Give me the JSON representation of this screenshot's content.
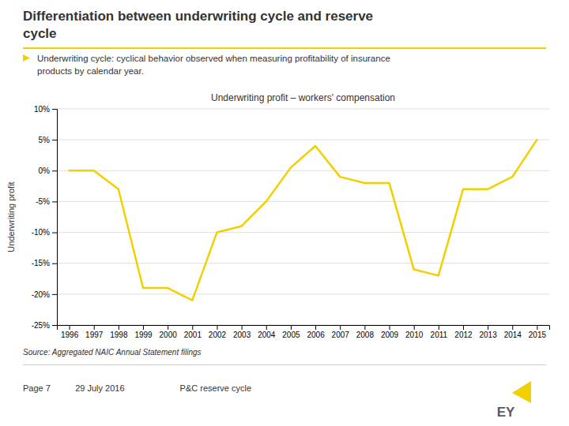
{
  "title": "Differentiation between underwriting cycle and reserve\ncycle",
  "subtitle": "Underwriting cycle: cyclical behavior observed when measuring profitability of insurance\nproducts by calendar year.",
  "annotations": [
    "Source: Aggregated NAIC Annual Statement filings",
    "Page 7",
    "29 July 2016",
    "P&C reserve cycle",
    "EY"
  ],
  "chart_data": {
    "type": "line",
    "title": "Underwriting profit – workers' compensation",
    "ylabel": "Underwriting profit",
    "x": [
      1996,
      1997,
      1998,
      1999,
      2000,
      2001,
      2002,
      2003,
      2004,
      2005,
      2006,
      2007,
      2008,
      2009,
      2010,
      2011,
      2012,
      2013,
      2014,
      2015
    ],
    "values": [
      0.0,
      0.0,
      -3.0,
      -19.0,
      -19.0,
      -21.0,
      -10.0,
      -9.0,
      -5.0,
      0.5,
      4.0,
      -1.0,
      -2.0,
      -2.0,
      -16.0,
      -17.0,
      -3.0,
      -3.0,
      -1.0,
      5.0
    ],
    "color": "#F2D000",
    "xlim": [
      1995.5,
      2015.5
    ],
    "xticks": [
      1996,
      1997,
      1998,
      1999,
      2000,
      2001,
      2002,
      2003,
      2004,
      2005,
      2006,
      2007,
      2008,
      2009,
      2010,
      2011,
      2012,
      2013,
      2014,
      2015
    ],
    "ylim": [
      -25,
      10
    ],
    "yticks": [
      {
        "value": -25,
        "label": "-25%"
      },
      {
        "value": -20,
        "label": "-20%"
      },
      {
        "value": -15,
        "label": "-15%"
      },
      {
        "value": -10,
        "label": "-10%"
      },
      {
        "value": -5,
        "label": "-5%"
      },
      {
        "value": 0,
        "label": "0%"
      },
      {
        "value": 5,
        "label": "5%"
      },
      {
        "value": 10,
        "label": "10%"
      }
    ],
    "grid": true
  }
}
